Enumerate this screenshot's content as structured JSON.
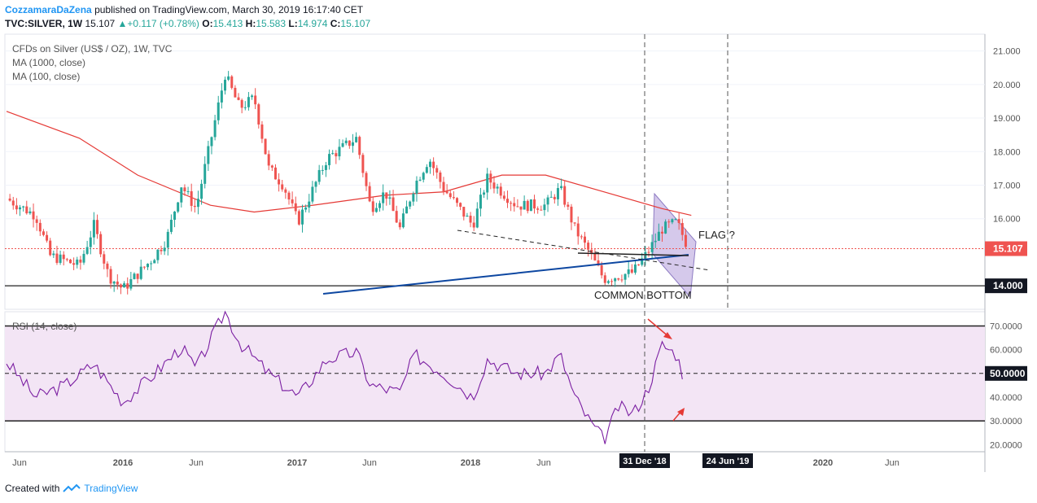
{
  "header": {
    "author": "CozzamaraDaZena",
    "published": "published on TradingView.com, March 30, 2019 16:17:40 CET",
    "symbol": "TVC:SILVER, 1W",
    "last": "15.107",
    "change": "+0.117 (+0.78%)",
    "o_label": "O:",
    "o": "15.413",
    "h_label": "H:",
    "h": "15.583",
    "l_label": "L:",
    "l": "14.974",
    "c_label": "C:",
    "c": "15.107"
  },
  "legend": {
    "title": "CFDs on Silver (US$ / OZ), 1W, TVC",
    "ma1": "MA (1000, close)",
    "ma2": "MA (100, close)",
    "rsi": "RSI (14, close)"
  },
  "annotations": {
    "flag": "FLAG ?",
    "bottom": "COMMON BOTTOM"
  },
  "footer": {
    "created_with": "Created with",
    "brand": "TradingView"
  },
  "colors": {
    "up": "#26a69a",
    "down": "#ef5350",
    "ma100": "#e53935",
    "trend": "#0d47a1",
    "rsi_line": "#7b1fa2",
    "rsi_band": "#f3e5f5",
    "flag_fill": "#b39ddb"
  },
  "chart_data": [
    {
      "type": "candlestick",
      "title": "CFDs on Silver (US$ / OZ), 1W, TVC",
      "ylim": [
        13.3,
        21.5
      ],
      "y_ticks": [
        "21.000",
        "20.000",
        "19.000",
        "18.000",
        "17.000",
        "16.000",
        "15.107",
        "14.000"
      ],
      "x_ticks": [
        "Jun",
        "2016",
        "Jun",
        "2017",
        "Jun",
        "2018",
        "Jun",
        "31 Dec '18",
        "24 Jun '19",
        "2020",
        "Jun"
      ],
      "price_label": "15.107",
      "level_label": "14.000",
      "close_trajectory": [
        [
          "2015-04",
          16.6
        ],
        [
          "2015-06",
          16.1
        ],
        [
          "2015-07",
          14.9
        ],
        [
          "2015-09",
          14.6
        ],
        [
          "2015-10",
          15.8
        ],
        [
          "2015-11",
          14.3
        ],
        [
          "2015-12",
          13.9
        ],
        [
          "2016-02",
          14.8
        ],
        [
          "2016-03",
          15.4
        ],
        [
          "2016-04",
          17.0
        ],
        [
          "2016-05",
          16.3
        ],
        [
          "2016-07",
          20.3
        ],
        [
          "2016-08",
          19.3
        ],
        [
          "2016-09",
          19.6
        ],
        [
          "2016-10",
          17.5
        ],
        [
          "2016-11",
          17.0
        ],
        [
          "2016-12",
          15.9
        ],
        [
          "2017-02",
          17.8
        ],
        [
          "2017-04",
          18.4
        ],
        [
          "2017-05",
          16.3
        ],
        [
          "2017-06",
          16.8
        ],
        [
          "2017-07",
          15.7
        ],
        [
          "2017-08",
          17.0
        ],
        [
          "2017-09",
          17.8
        ],
        [
          "2017-10",
          16.9
        ],
        [
          "2017-12",
          15.8
        ],
        [
          "2018-01",
          17.2
        ],
        [
          "2018-03",
          16.4
        ],
        [
          "2018-05",
          16.4
        ],
        [
          "2018-06",
          16.9
        ],
        [
          "2018-07",
          15.7
        ],
        [
          "2018-08",
          15.0
        ],
        [
          "2018-09",
          14.2
        ],
        [
          "2018-11",
          14.4
        ],
        [
          "2018-12",
          15.0
        ],
        [
          "2019-01",
          15.7
        ],
        [
          "2019-02",
          15.9
        ],
        [
          "2019-03",
          15.107
        ]
      ],
      "series": [
        {
          "name": "MA (100, close)",
          "points": [
            [
              "2015-04",
              19.2
            ],
            [
              "2015-09",
              18.4
            ],
            [
              "2016-01",
              17.3
            ],
            [
              "2016-06",
              16.4
            ],
            [
              "2016-09",
              16.2
            ],
            [
              "2017-01",
              16.4
            ],
            [
              "2017-06",
              16.7
            ],
            [
              "2017-10",
              16.8
            ],
            [
              "2018-02",
              17.3
            ],
            [
              "2018-05",
              17.3
            ],
            [
              "2018-09",
              16.8
            ],
            [
              "2019-01",
              16.3
            ],
            [
              "2019-03",
              16.1
            ]
          ]
        }
      ],
      "annotations": [
        "FLAG ?",
        "COMMON BOTTOM"
      ]
    },
    {
      "type": "line",
      "title": "RSI (14, close)",
      "ylim": [
        17,
        76
      ],
      "y_ticks": [
        "70.0000",
        "60.0000",
        "50.0000",
        "40.0000",
        "30.0000",
        "20.0000"
      ],
      "bands": [
        30,
        50,
        70
      ],
      "series": [
        {
          "name": "RSI (14, close)",
          "points": [
            [
              "2015-04",
              55
            ],
            [
              "2015-06",
              40
            ],
            [
              "2015-08",
              45
            ],
            [
              "2015-10",
              54
            ],
            [
              "2015-12",
              38
            ],
            [
              "2016-02",
              49
            ],
            [
              "2016-04",
              61
            ],
            [
              "2016-05",
              52
            ],
            [
              "2016-07",
              76
            ],
            [
              "2016-08",
              63
            ],
            [
              "2016-10",
              50
            ],
            [
              "2016-12",
              40
            ],
            [
              "2017-02",
              56
            ],
            [
              "2017-04",
              59
            ],
            [
              "2017-05",
              45
            ],
            [
              "2017-07",
              42
            ],
            [
              "2017-08",
              58
            ],
            [
              "2017-10",
              50
            ],
            [
              "2017-12",
              40
            ],
            [
              "2018-01",
              56
            ],
            [
              "2018-03",
              50
            ],
            [
              "2018-05",
              50
            ],
            [
              "2018-06",
              58
            ],
            [
              "2018-07",
              40
            ],
            [
              "2018-08",
              30
            ],
            [
              "2018-09",
              22
            ],
            [
              "2018-10",
              36
            ],
            [
              "2018-11",
              33
            ],
            [
              "2018-12",
              43
            ],
            [
              "2019-01",
              62
            ],
            [
              "2019-02",
              58
            ],
            [
              "2019-03",
              48
            ]
          ]
        }
      ]
    }
  ]
}
